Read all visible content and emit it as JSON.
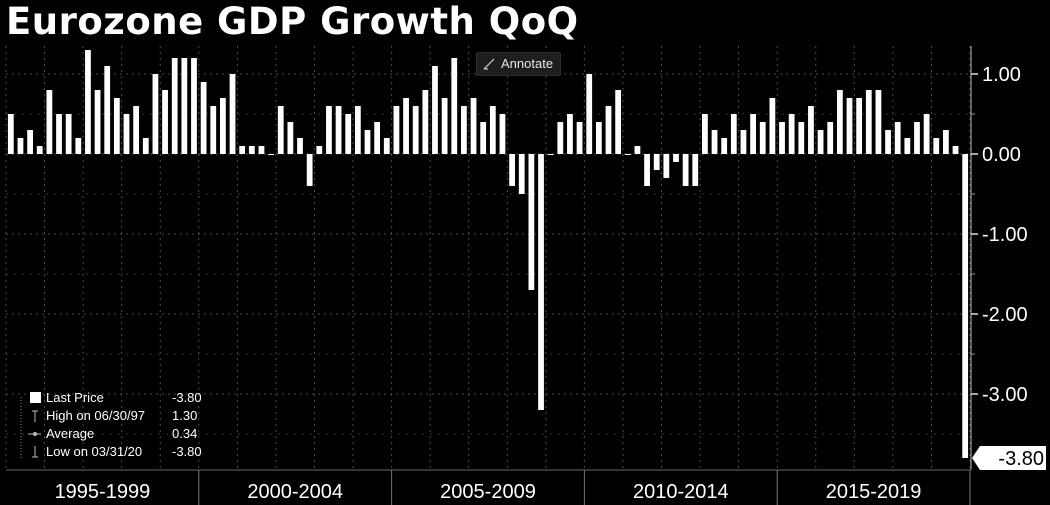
{
  "title": "Eurozone GDP Growth QoQ",
  "toolbar": {
    "annotate_label": "Annotate",
    "annotate_icon": "pencil-icon"
  },
  "colors": {
    "background": "#000000",
    "bars": "#ffffff",
    "grid": "#4a4a4a",
    "text": "#ffffff",
    "last_price_tag_bg": "#ffffff",
    "last_price_tag_text": "#000000"
  },
  "legend": {
    "placement": "bottom-left",
    "items": [
      {
        "label": "Last Price",
        "value": "-3.80"
      },
      {
        "label": "High on 06/30/97",
        "value": "1.30"
      },
      {
        "label": "Average",
        "value": "0.34"
      },
      {
        "label": "Low on 03/31/20",
        "value": "-3.80"
      }
    ]
  },
  "last_price_tag": "-3.80",
  "chart_data": {
    "type": "bar",
    "title": "Eurozone GDP Growth QoQ",
    "xlabel": "",
    "ylabel": "",
    "y_axis_side": "right",
    "ylim": [
      -4.0,
      1.35
    ],
    "yticks": [
      1.0,
      0.0,
      -1.0,
      -2.0,
      -3.0
    ],
    "ytick_labels": [
      "1.00",
      "0.00",
      "-1.00",
      "-2.00",
      "-3.00"
    ],
    "x_period_labels": [
      "1995-1999",
      "2000-2004",
      "2005-2009",
      "2010-2014",
      "2015-2019"
    ],
    "grid": true,
    "x_start": "1995 Q1",
    "x_end": "2020 Q1",
    "series": [
      {
        "values": [
          0.5,
          0.2,
          0.3,
          0.1,
          0.8,
          0.5,
          0.5,
          0.2,
          1.3,
          0.8,
          1.1,
          0.7,
          0.5,
          0.6,
          0.2,
          1.0,
          0.8,
          1.2,
          1.2,
          1.2,
          0.9,
          0.6,
          0.7,
          1.0,
          0.1,
          0.1,
          0.1,
          0.0,
          0.6,
          0.4,
          0.2,
          -0.4,
          0.1,
          0.6,
          0.6,
          0.5,
          0.6,
          0.3,
          0.4,
          0.2,
          0.6,
          0.7,
          0.6,
          0.8,
          1.1,
          0.7,
          1.2,
          0.6,
          0.7,
          0.4,
          0.6,
          0.5,
          -0.4,
          -0.5,
          -1.7,
          -3.2,
          0.0,
          0.4,
          0.5,
          0.4,
          1.0,
          0.4,
          0.6,
          0.8,
          0.0,
          0.1,
          -0.4,
          -0.2,
          -0.3,
          -0.1,
          -0.4,
          -0.4,
          0.5,
          0.3,
          0.2,
          0.5,
          0.3,
          0.5,
          0.4,
          0.7,
          0.4,
          0.5,
          0.4,
          0.6,
          0.3,
          0.4,
          0.8,
          0.7,
          0.7,
          0.8,
          0.8,
          0.3,
          0.4,
          0.2,
          0.4,
          0.5,
          0.2,
          0.3,
          0.1,
          -3.8
        ]
      }
    ]
  }
}
